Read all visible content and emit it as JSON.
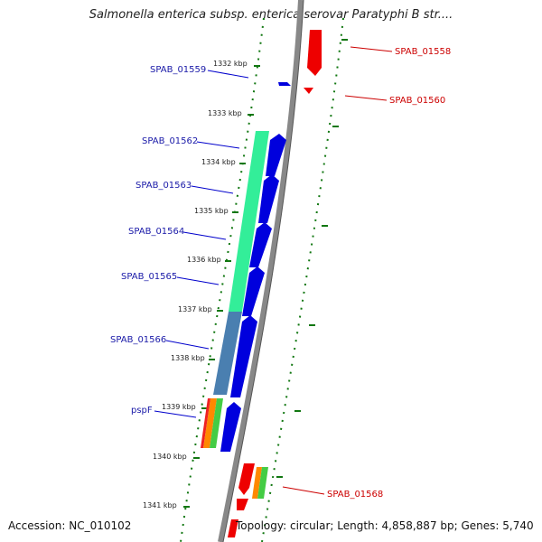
{
  "title": "Salmonella enterica subsp. enterica serovar Paratyphi B str....",
  "accession": "Accession: NC_010102",
  "topology": "Topology: circular; Length: 4,858,887 bp; Genes: 5,740",
  "ticks": [
    "1332 kbp",
    "1333 kbp",
    "1334 kbp",
    "1335 kbp",
    "1336 kbp",
    "1337 kbp",
    "1338 kbp",
    "1339 kbp",
    "1340 kbp",
    "1341 kbp"
  ],
  "genes_left": [
    "SPAB_01559",
    "SPAB_01562",
    "SPAB_01563",
    "SPAB_01564",
    "SPAB_01565",
    "SPAB_01566",
    "pspF"
  ],
  "genes_right": [
    "SPAB_01558",
    "SPAB_01560",
    "SPAB_01568"
  ],
  "colors": {
    "left_label": "#1a1aa8",
    "right_label": "#cc0000",
    "cds_blue": "#0000dd",
    "cds_red": "#ee0000",
    "cog_green": "#33ee99",
    "cog_steel": "#4a7fb0",
    "cog_orange": "#ff8800",
    "cog_lime": "#44cc44",
    "dots": "#117711"
  }
}
